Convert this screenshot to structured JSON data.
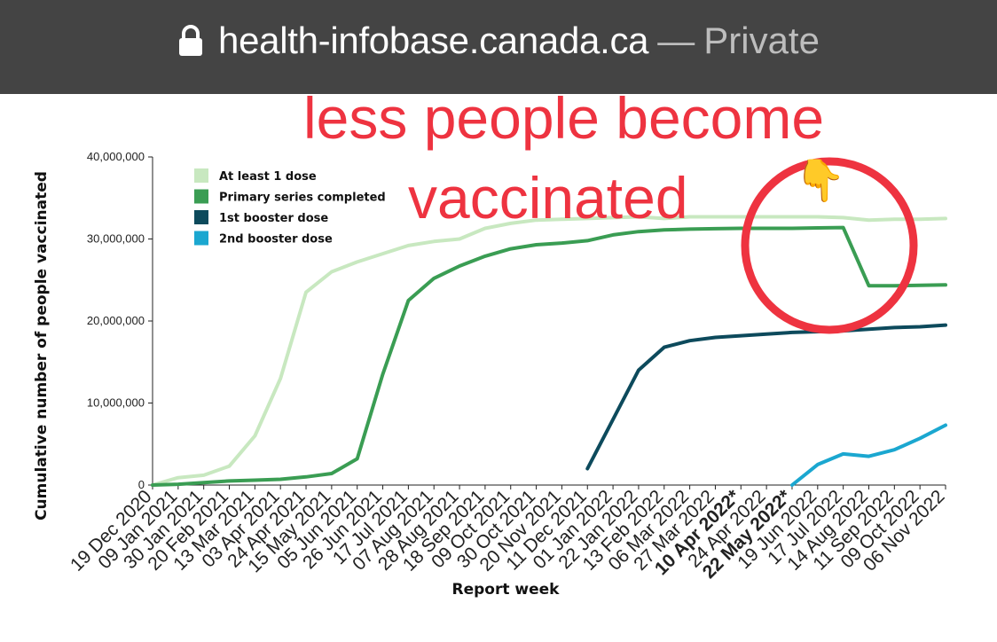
{
  "browser": {
    "domain": "health-infobase.canada.ca",
    "separator": "—",
    "mode": "Private"
  },
  "annotation": {
    "line1": "less people become",
    "line2": "vaccinated",
    "hand_glyph": "👇",
    "circle_color": "#ee3340"
  },
  "chart_data": {
    "type": "line",
    "title": "",
    "xlabel": "Report week",
    "ylabel": "Cumulative number of people vaccinated",
    "ylim": [
      0,
      40000000
    ],
    "yticks": [
      0,
      10000000,
      20000000,
      30000000,
      40000000
    ],
    "ytick_labels": [
      "0",
      "10,000,000",
      "20,000,000",
      "30,000,000",
      "40,000,000"
    ],
    "x": [
      "2020-12-19",
      "2021-01-09",
      "2021-01-30",
      "2021-02-20",
      "2021-03-13",
      "2021-04-03",
      "2021-04-24",
      "2021-05-15",
      "2021-06-05",
      "2021-06-26",
      "2021-07-17",
      "2021-08-07",
      "2021-08-28",
      "2021-09-18",
      "2021-10-09",
      "2021-10-30",
      "2021-11-20",
      "2021-12-11",
      "2022-01-01",
      "2022-01-22",
      "2022-02-13",
      "2022-03-06",
      "2022-03-27",
      "2022-04-10",
      "2022-04-24",
      "2022-05-22",
      "2022-06-19",
      "2022-07-17",
      "2022-08-14",
      "2022-09-11",
      "2022-10-09",
      "2022-11-06"
    ],
    "xtick_labels": [
      "19 Dec 2020",
      "09 Jan 2021",
      "30 Jan 2021",
      "20 Feb 2021",
      "13 Mar 2021",
      "03 Apr 2021",
      "24 Apr 2021",
      "15 May 2021",
      "05 Jun 2021",
      "26 Jun 2021",
      "17 Jul 2021",
      "07 Aug 2021",
      "28 Aug 2021",
      "18 Sep 2021",
      "09 Oct 2021",
      "30 Oct 2021",
      "20 Nov 2021",
      "11 Dec 2021",
      "01 Jan 2022",
      "22 Jan 2022",
      "13 Feb 2022",
      "06 Mar 2022",
      "27 Mar 2022",
      "10 Apr 2022*",
      "24 Apr 2022",
      "22 May 2022*",
      "19 Jun 2022",
      "17 Jul 2022",
      "14 Aug 2022",
      "11 Sep 2022",
      "09 Oct 2022",
      "06 Nov 2022"
    ],
    "bold_ticks": [
      "10 Apr 2022*",
      "22 May 2022*"
    ],
    "legend_placement": "top-left",
    "grid": false,
    "series": [
      {
        "name": "At least 1 dose",
        "color": "#c8e8c0",
        "values": [
          0,
          900000,
          1200000,
          2300000,
          6000000,
          13000000,
          23500000,
          26000000,
          27200000,
          28200000,
          29200000,
          29700000,
          30000000,
          31300000,
          31900000,
          32300000,
          32400000,
          32500000,
          32600000,
          32700000,
          32500000,
          32700000,
          32700000,
          32700000,
          32700000,
          32700000,
          32700000,
          32600000,
          32300000,
          32400000,
          32400000,
          32500000
        ]
      },
      {
        "name": "Primary series completed",
        "color": "#3a9d53",
        "values": [
          0,
          100000,
          300000,
          500000,
          600000,
          700000,
          1000000,
          1400000,
          3200000,
          13500000,
          22500000,
          25200000,
          26700000,
          27900000,
          28800000,
          29300000,
          29500000,
          29800000,
          30500000,
          30900000,
          31100000,
          31200000,
          31250000,
          31300000,
          31300000,
          31300000,
          31350000,
          31400000,
          24300000,
          24300000,
          24350000,
          24400000
        ]
      },
      {
        "name": "1st booster dose",
        "color": "#0d4a5c",
        "values": [
          null,
          null,
          null,
          null,
          null,
          null,
          null,
          null,
          null,
          null,
          null,
          null,
          null,
          null,
          null,
          null,
          null,
          2000000,
          8000000,
          14000000,
          16800000,
          17600000,
          18000000,
          18200000,
          18400000,
          18600000,
          18700000,
          18800000,
          19000000,
          19200000,
          19300000,
          19500000
        ]
      },
      {
        "name": "2nd booster dose",
        "color": "#1ba7d0",
        "values": [
          null,
          null,
          null,
          null,
          null,
          null,
          null,
          null,
          null,
          null,
          null,
          null,
          null,
          null,
          null,
          null,
          null,
          null,
          null,
          null,
          null,
          null,
          null,
          null,
          null,
          0,
          2500000,
          3800000,
          3500000,
          4300000,
          5700000,
          7300000
        ]
      }
    ]
  }
}
